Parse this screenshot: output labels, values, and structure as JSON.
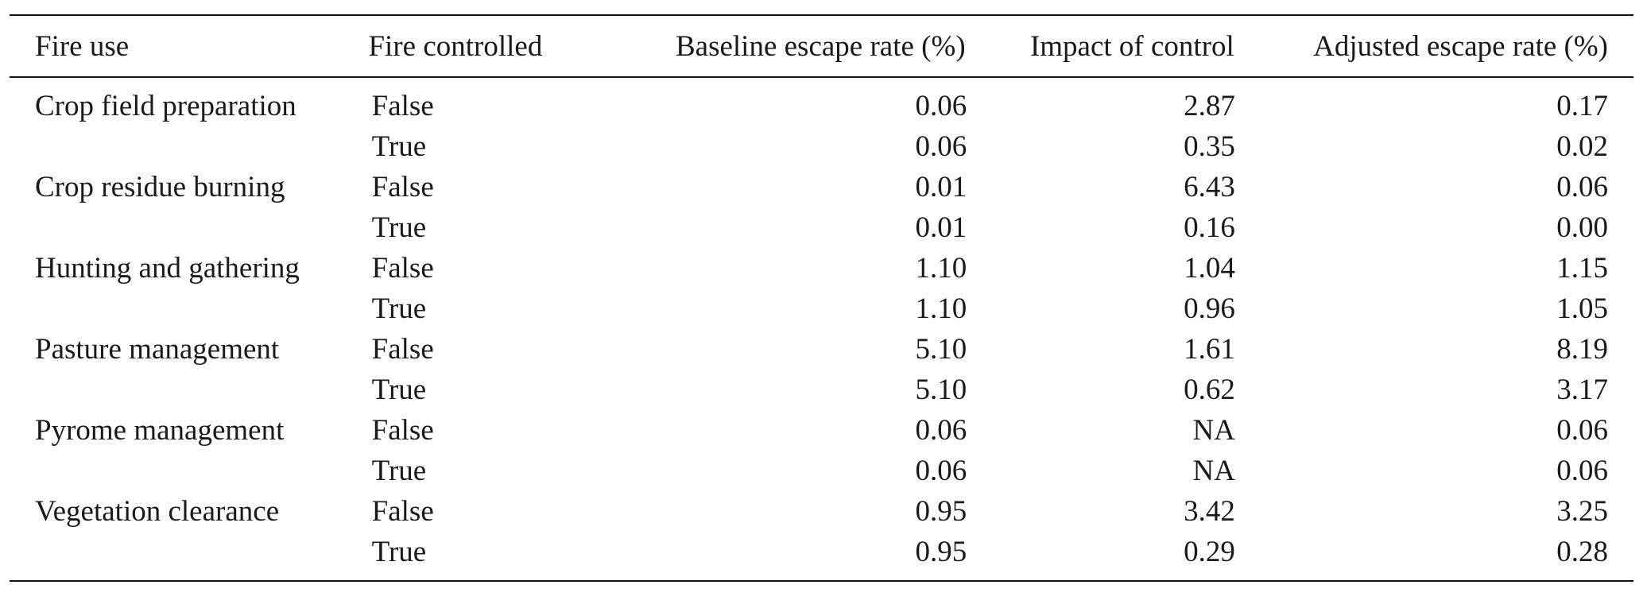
{
  "table": {
    "headers": {
      "fire_use": "Fire use",
      "fire_controlled": "Fire controlled",
      "baseline": "Baseline escape rate (%)",
      "impact": "Impact of control",
      "adjusted": "Adjusted escape rate (%)"
    },
    "rows": [
      {
        "fire_use": "Crop field preparation",
        "controlled": "False",
        "baseline": "0.06",
        "impact": "2.87",
        "adjusted": "0.17"
      },
      {
        "fire_use": "",
        "controlled": "True",
        "baseline": "0.06",
        "impact": "0.35",
        "adjusted": "0.02"
      },
      {
        "fire_use": "Crop residue burning",
        "controlled": "False",
        "baseline": "0.01",
        "impact": "6.43",
        "adjusted": "0.06"
      },
      {
        "fire_use": "",
        "controlled": "True",
        "baseline": "0.01",
        "impact": "0.16",
        "adjusted": "0.00"
      },
      {
        "fire_use": "Hunting and gathering",
        "controlled": "False",
        "baseline": "1.10",
        "impact": "1.04",
        "adjusted": "1.15"
      },
      {
        "fire_use": "",
        "controlled": "True",
        "baseline": "1.10",
        "impact": "0.96",
        "adjusted": "1.05"
      },
      {
        "fire_use": "Pasture management",
        "controlled": "False",
        "baseline": "5.10",
        "impact": "1.61",
        "adjusted": "8.19"
      },
      {
        "fire_use": "",
        "controlled": "True",
        "baseline": "5.10",
        "impact": "0.62",
        "adjusted": "3.17"
      },
      {
        "fire_use": "Pyrome management",
        "controlled": "False",
        "baseline": "0.06",
        "impact": "NA",
        "adjusted": "0.06"
      },
      {
        "fire_use": "",
        "controlled": "True",
        "baseline": "0.06",
        "impact": "NA",
        "adjusted": "0.06"
      },
      {
        "fire_use": "Vegetation clearance",
        "controlled": "False",
        "baseline": "0.95",
        "impact": "3.42",
        "adjusted": "3.25"
      },
      {
        "fire_use": "",
        "controlled": "True",
        "baseline": "0.95",
        "impact": "0.29",
        "adjusted": "0.28"
      }
    ]
  }
}
